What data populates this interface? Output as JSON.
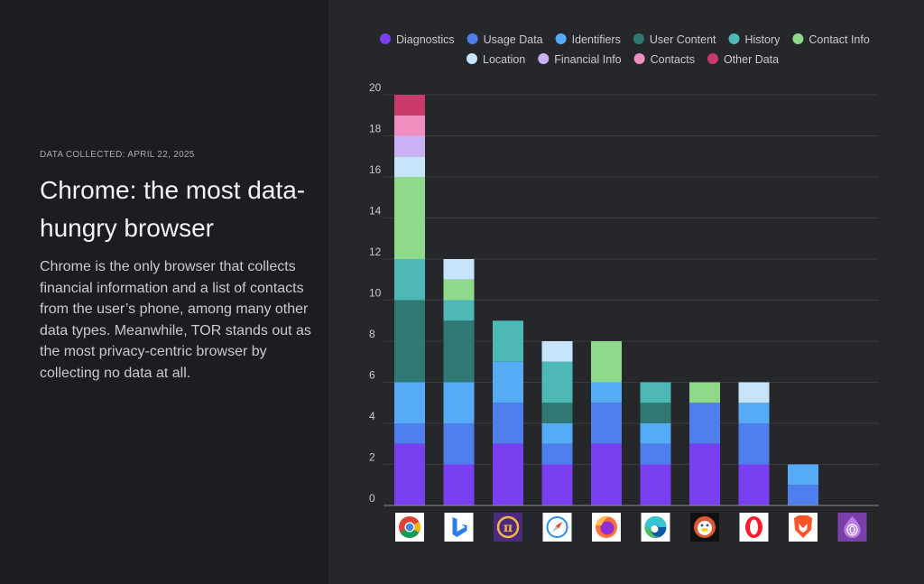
{
  "panel": {
    "eyebrow": "DATA COLLECTED: APRIL 22, 2025",
    "title": "Chrome: the most data-hungry browser",
    "description": "Chrome is the only browser that collects financial information and a list of contacts from the user’s phone, among many other data types. Meanwhile, TOR stands out as the most privacy-centric browser by collecting no data at all."
  },
  "chart_data": {
    "type": "bar",
    "stacked": true,
    "categories": [
      "Chrome",
      "Bing",
      "Pi Browser",
      "Safari",
      "Firefox",
      "Edge",
      "DuckDuckGo",
      "Opera",
      "Brave",
      "Tor"
    ],
    "category_icons": [
      "chrome-icon",
      "bing-icon",
      "pi-browser-icon",
      "safari-icon",
      "firefox-icon",
      "edge-icon",
      "duckduckgo-icon",
      "opera-icon",
      "brave-icon",
      "tor-icon"
    ],
    "ylim": [
      0,
      20
    ],
    "yticks": [
      "0",
      "2",
      "4",
      "6",
      "8",
      "10",
      "12",
      "14",
      "16",
      "18",
      "20"
    ],
    "grid": true,
    "legend_position": "top",
    "series": [
      {
        "name": "Diagnostics",
        "color": "#7b3ff2",
        "values": [
          3,
          2,
          3,
          2,
          3,
          2,
          3,
          2,
          0,
          0
        ]
      },
      {
        "name": "Usage Data",
        "color": "#4f7fed",
        "values": [
          1,
          2,
          2,
          1,
          2,
          1,
          2,
          2,
          1,
          0
        ]
      },
      {
        "name": "Identifiers",
        "color": "#55abf6",
        "values": [
          2,
          2,
          2,
          1,
          1,
          1,
          0,
          1,
          1,
          0
        ]
      },
      {
        "name": "User Content",
        "color": "#2f7873",
        "values": [
          4,
          3,
          0,
          1,
          0,
          1,
          0,
          0,
          0,
          0
        ]
      },
      {
        "name": "History",
        "color": "#4db8b5",
        "values": [
          2,
          1,
          2,
          2,
          0,
          1,
          0,
          0,
          0,
          0
        ]
      },
      {
        "name": "Contact Info",
        "color": "#8ed98a",
        "values": [
          4,
          1,
          0,
          0,
          2,
          0,
          1,
          0,
          0,
          0
        ]
      },
      {
        "name": "Location",
        "color": "#c6e5fb",
        "values": [
          1,
          1,
          0,
          1,
          0,
          0,
          0,
          1,
          0,
          0
        ]
      },
      {
        "name": "Financial Info",
        "color": "#cbb2f7",
        "values": [
          1,
          0,
          0,
          0,
          0,
          0,
          0,
          0,
          0,
          0
        ]
      },
      {
        "name": "Contacts",
        "color": "#f08fbf",
        "values": [
          1,
          0,
          0,
          0,
          0,
          0,
          0,
          0,
          0,
          0
        ]
      },
      {
        "name": "Other Data",
        "color": "#c93a6b",
        "values": [
          1,
          0,
          0,
          0,
          0,
          0,
          0,
          0,
          0,
          0
        ]
      }
    ]
  }
}
